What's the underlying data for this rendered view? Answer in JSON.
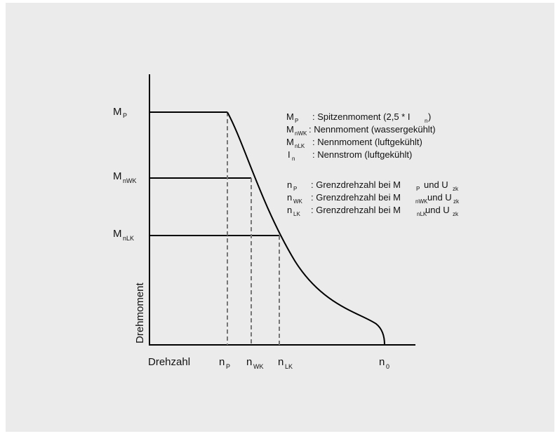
{
  "colors": {
    "background": "#ebebeb",
    "axis": "#000000",
    "curve": "#000000",
    "dashed": "#777777",
    "text": "#111111"
  },
  "chart_data": {
    "type": "line",
    "xlabel": "Drehzahl",
    "ylabel": "Drehmoment",
    "y_ticks": [
      {
        "main": "M",
        "sub": "P"
      },
      {
        "main": "M",
        "sub": "nWK"
      },
      {
        "main": "M",
        "sub": "nLK"
      }
    ],
    "x_ticks": [
      {
        "main": "n",
        "sub": "P"
      },
      {
        "main": "n",
        "sub": "WK"
      },
      {
        "main": "n",
        "sub": "LK"
      },
      {
        "main": "n",
        "sub": "0"
      }
    ],
    "legend_group1": [
      {
        "main": "M",
        "sub": "P",
        "text": ": Spitzenmoment (2,5 * I",
        "sub2": "n",
        "tail": ")"
      },
      {
        "main": "M",
        "sub": "nWK",
        "text": ": Nennmoment (wassergekühlt)"
      },
      {
        "main": "M",
        "sub": "nLK",
        "text": ": Nennmoment (luftgekühlt)"
      },
      {
        "main": "I",
        "sub": "n",
        "text": ": Nennstrom (luftgekühlt)"
      }
    ],
    "legend_group2": [
      {
        "main": "n",
        "sub": "P",
        "text": ": Grenzdrehzahl bei M",
        "sub2": "P",
        "text2": " und U",
        "sub3": "zk"
      },
      {
        "main": "n",
        "sub": "WK",
        "text": ": Grenzdrehzahl bei M",
        "sub2": "nWK",
        "text2": "und U",
        "sub3": "zk"
      },
      {
        "main": "n",
        "sub": "LK",
        "text": ": Grenzdrehzahl bei M",
        "sub2": "nLK",
        "text2": " und U",
        "sub3": "zk"
      }
    ],
    "grid": false
  }
}
